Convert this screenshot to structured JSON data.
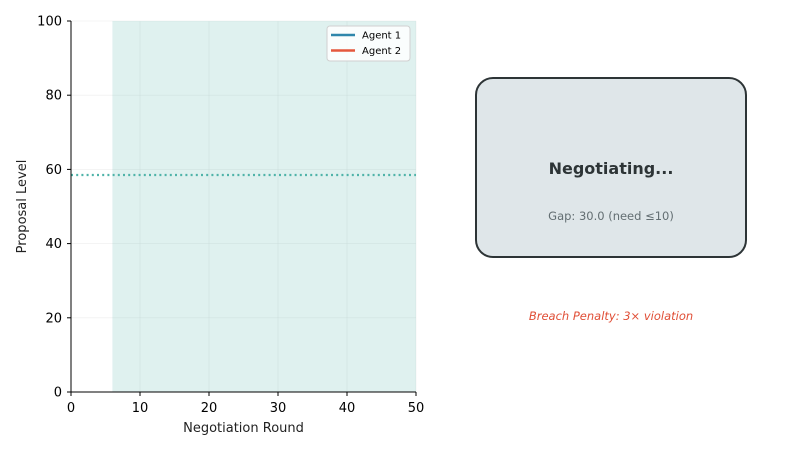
{
  "chart_data": {
    "type": "line",
    "xlabel": "Negotiation Round",
    "ylabel": "Proposal Level",
    "xlim": [
      0,
      50
    ],
    "ylim": [
      0,
      100
    ],
    "xticks": [
      0,
      10,
      20,
      30,
      40,
      50
    ],
    "yticks": [
      0,
      20,
      40,
      60,
      80,
      100
    ],
    "grid": true,
    "legend_position": "top-right",
    "series": [
      {
        "name": "Agent 1",
        "color": "#2e86ab",
        "x": [],
        "y": []
      },
      {
        "name": "Agent 2",
        "color": "#e4573d",
        "x": [],
        "y": []
      }
    ],
    "shaded_region": {
      "x_start": 6,
      "x_end": 50,
      "color": "#4fb3a9"
    },
    "reference_line": {
      "y": 58.5,
      "color": "#4fb3a9",
      "style": "dotted"
    }
  },
  "status": {
    "title": "Negotiating...",
    "gap_text": "Gap: 30.0 (need ≤10)"
  },
  "penalty_text": "Breach Penalty: 3× violation"
}
